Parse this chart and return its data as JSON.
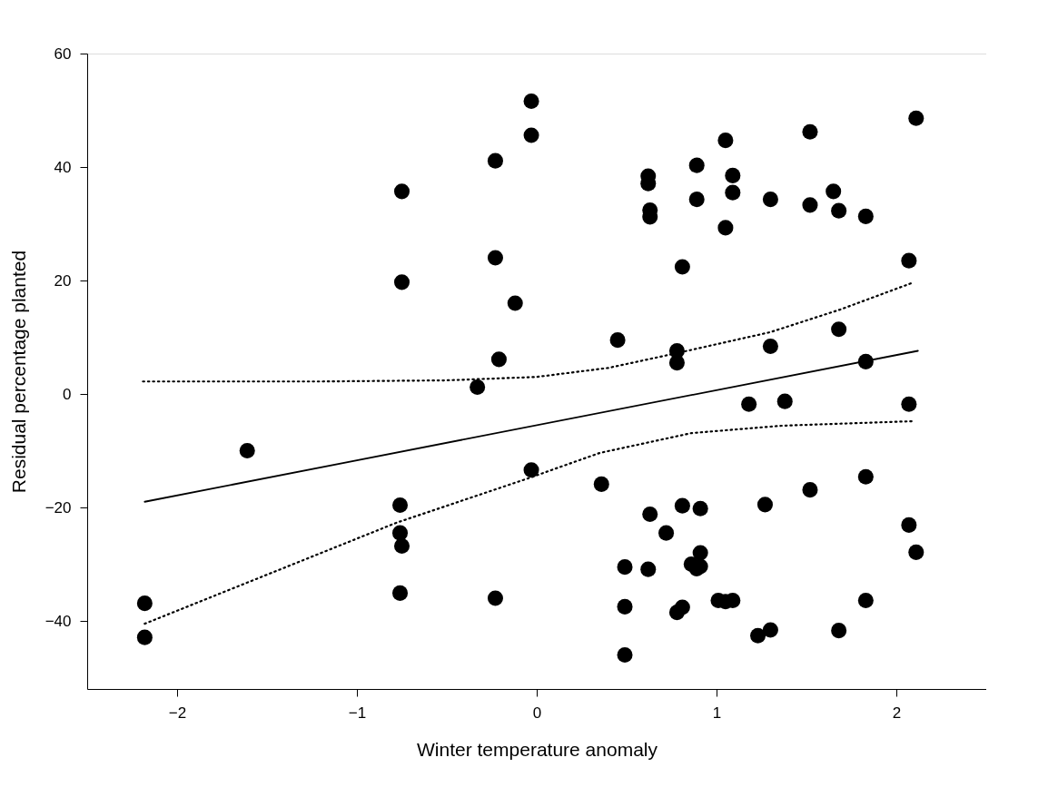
{
  "chart_data": {
    "type": "scatter",
    "xlabel": "Winter temperature anomaly",
    "ylabel": "Residual percentage planted",
    "xlim": [
      -2.5,
      2.5
    ],
    "ylim": [
      -52,
      60
    ],
    "xticks": [
      -2,
      -1,
      0,
      1,
      2
    ],
    "yticks": [
      -40,
      -20,
      0,
      20,
      40,
      60
    ],
    "grid": false,
    "series": [
      {
        "type": "scatter",
        "color": "#000000",
        "marker": "circle",
        "x": [
          -0.75,
          -0.75,
          -0.23,
          -0.23,
          -0.12,
          -0.21,
          -0.33,
          -0.03,
          -0.03,
          1.05,
          0.89,
          1.09,
          1.09,
          0.62,
          0.62,
          0.63,
          0.63,
          0.89,
          1.05,
          1.3,
          1.52,
          1.52,
          1.65,
          1.68,
          1.83,
          2.11,
          2.07,
          0.81,
          0.45,
          0.78,
          0.78,
          1.3,
          1.68,
          1.83,
          1.18,
          1.38,
          2.07,
          -0.03,
          0.36,
          1.83,
          1.52,
          1.27,
          0.81,
          0.91,
          0.63,
          0.72,
          2.07,
          2.11,
          0.91,
          0.49,
          0.62,
          0.86,
          0.91,
          0.89,
          0.49,
          0.78,
          0.81,
          1.01,
          1.05,
          1.09,
          1.83,
          1.23,
          1.3,
          1.68,
          0.49,
          -1.61,
          -0.76,
          -0.76,
          -0.75,
          -0.76,
          -0.23,
          -2.18,
          -2.18
        ],
        "values": [
          35.7,
          19.7,
          41.1,
          24.0,
          16.0,
          6.1,
          1.2,
          51.6,
          45.6,
          44.7,
          40.3,
          38.5,
          35.5,
          38.4,
          37.1,
          32.4,
          31.2,
          34.3,
          29.3,
          34.3,
          46.2,
          33.3,
          35.7,
          32.3,
          31.3,
          48.6,
          23.5,
          22.4,
          9.5,
          7.6,
          5.5,
          8.4,
          11.4,
          5.7,
          -1.8,
          -1.3,
          -1.8,
          -13.4,
          -15.9,
          -14.6,
          -16.9,
          -19.5,
          -19.7,
          -20.2,
          -21.2,
          -24.5,
          -23.1,
          -27.9,
          -28.0,
          -30.5,
          -30.9,
          -30.0,
          -30.4,
          -30.8,
          -37.5,
          -38.5,
          -37.6,
          -36.4,
          -36.6,
          -36.4,
          -36.4,
          -42.6,
          -41.6,
          -41.7,
          -46.0,
          -10.0,
          -19.6,
          -24.5,
          -26.8,
          -35.1,
          -36.0,
          -36.9,
          -42.9
        ]
      },
      {
        "type": "line",
        "color": "#000000",
        "line_style": "solid",
        "marker": "none",
        "x": [
          -2.18,
          2.12
        ],
        "values": [
          -19.0,
          7.6
        ]
      },
      {
        "type": "line",
        "color": "#000000",
        "line_style": "dotted",
        "marker": "none",
        "x": [
          -2.19,
          -1.2,
          -0.5,
          0,
          0.4,
          0.78,
          1.3,
          1.69,
          2.09
        ],
        "values": [
          2.2,
          2.2,
          2.4,
          3.0,
          4.6,
          7.2,
          10.9,
          14.9,
          19.6
        ]
      },
      {
        "type": "line",
        "color": "#000000",
        "line_style": "dotted",
        "marker": "none",
        "x": [
          -2.18,
          -0.78,
          -0.05,
          0.35,
          0.86,
          1.36,
          2.09
        ],
        "values": [
          -40.5,
          -22.7,
          -14.9,
          -10.4,
          -6.9,
          -5.6,
          -4.8
        ]
      }
    ]
  }
}
